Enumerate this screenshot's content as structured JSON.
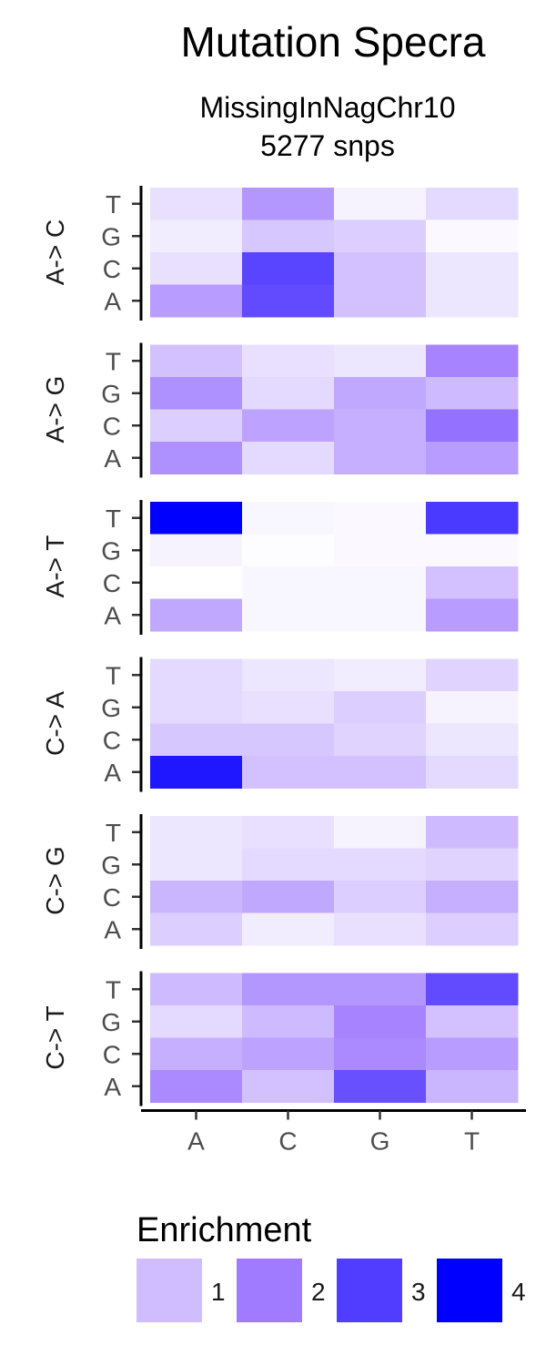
{
  "chart_data": {
    "type": "heatmap",
    "title": "Mutation Specra",
    "subtitle_lines": [
      "MissingInNagChr10",
      "5277 snps"
    ],
    "x_categories": [
      "A",
      "C",
      "G",
      "T"
    ],
    "y_categories": [
      "A",
      "C",
      "G",
      "T"
    ],
    "facets": [
      {
        "label": "A-> C",
        "rows": {
          "T": [
            0.5,
            1.7,
            0.2,
            0.6
          ],
          "G": [
            0.3,
            0.9,
            0.8,
            0.1
          ],
          "C": [
            0.5,
            3.1,
            1.0,
            0.4
          ],
          "A": [
            1.6,
            3.0,
            1.0,
            0.4
          ]
        }
      },
      {
        "label": "A-> G",
        "rows": {
          "T": [
            1.0,
            0.5,
            0.4,
            2.0
          ],
          "G": [
            1.8,
            0.6,
            1.4,
            1.1
          ],
          "C": [
            0.8,
            1.5,
            1.3,
            2.3
          ],
          "A": [
            1.8,
            0.6,
            1.3,
            1.6
          ]
        }
      },
      {
        "label": "A-> T",
        "rows": {
          "T": [
            4.3,
            0.15,
            0.1,
            3.3
          ],
          "G": [
            0.2,
            0.05,
            0.1,
            0.1
          ],
          "C": [
            0.0,
            0.15,
            0.15,
            1.0
          ],
          "A": [
            1.4,
            0.15,
            0.15,
            1.6
          ]
        }
      },
      {
        "label": "C-> A",
        "rows": {
          "T": [
            0.6,
            0.4,
            0.3,
            0.7
          ],
          "G": [
            0.6,
            0.5,
            0.8,
            0.2
          ],
          "C": [
            0.9,
            0.9,
            0.7,
            0.4
          ],
          "A": [
            3.9,
            1.0,
            1.0,
            0.6
          ]
        }
      },
      {
        "label": "C-> G",
        "rows": {
          "T": [
            0.4,
            0.5,
            0.2,
            1.1
          ],
          "G": [
            0.4,
            0.6,
            0.6,
            0.7
          ],
          "C": [
            1.2,
            1.4,
            0.8,
            1.3
          ],
          "A": [
            0.8,
            0.3,
            0.5,
            0.8
          ]
        }
      },
      {
        "label": "C-> T",
        "rows": {
          "T": [
            1.1,
            1.7,
            1.7,
            3.0
          ],
          "G": [
            0.6,
            1.1,
            2.0,
            1.0
          ],
          "C": [
            1.3,
            1.5,
            1.9,
            1.6
          ],
          "A": [
            1.9,
            1.0,
            2.9,
            1.2
          ]
        }
      }
    ],
    "legend": {
      "title": "Enrichment",
      "values": [
        1,
        2,
        3,
        4
      ],
      "labels": [
        "1",
        "2",
        "3",
        "4"
      ],
      "position": "bottom"
    },
    "color_scale": {
      "low": "#ffffff",
      "high": "#0000ff",
      "mid": "#a07aff",
      "range": [
        0,
        4.3
      ]
    },
    "grid": false
  }
}
